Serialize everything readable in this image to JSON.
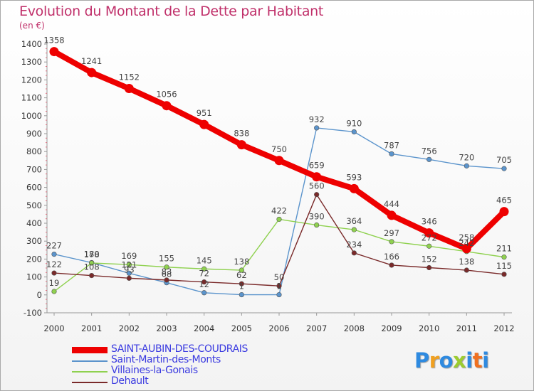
{
  "title": "Evolution du Montant de la Dette par Habitant",
  "unit_label": "(en €)",
  "logo": {
    "text": "Proxiti",
    "letters": [
      {
        "ch": "P",
        "color": "#2e8ae0"
      },
      {
        "ch": "r",
        "color": "#f0a020"
      },
      {
        "ch": "o",
        "color": "#2e8ae0"
      },
      {
        "ch": "x",
        "color": "#9ccc30"
      },
      {
        "ch": "i",
        "color": "#2e8ae0"
      },
      {
        "ch": "t",
        "color": "#f07020"
      },
      {
        "ch": "i",
        "color": "#2e8ae0"
      }
    ]
  },
  "chart_data": {
    "type": "line",
    "title": "Evolution du Montant de la Dette par Habitant",
    "ylabel": "(en €)",
    "xlabel": "",
    "x": [
      "2000",
      "2001",
      "2002",
      "2003",
      "2004",
      "2005",
      "2006",
      "2007",
      "2008",
      "2009",
      "2010",
      "2011",
      "2012"
    ],
    "ylim": [
      -100,
      1400
    ],
    "yticks": [
      -100,
      0,
      100,
      200,
      300,
      400,
      500,
      600,
      700,
      800,
      900,
      1000,
      1100,
      1200,
      1300,
      1400
    ],
    "grid": false,
    "legend": "bottom-left",
    "series": [
      {
        "name": "SAINT-AUBIN-DES-COUDRAIS",
        "color": "#ee0000",
        "emphasis": true,
        "values": [
          1358,
          1241,
          1152,
          1056,
          951,
          838,
          750,
          659,
          593,
          444,
          346,
          258,
          465
        ],
        "labels": [
          "1358",
          "1241",
          "1152",
          "1056",
          "951",
          "838",
          "750",
          "659",
          "593",
          "444",
          "346",
          "258",
          "465"
        ]
      },
      {
        "name": "Saint-Martin-des-Monts",
        "color": "#5b94cc",
        "emphasis": false,
        "values": [
          227,
          180,
          121,
          68,
          12,
          1,
          1,
          932,
          910,
          787,
          756,
          720,
          705
        ],
        "labels": [
          "227",
          "180",
          "121",
          "68",
          "12",
          "1",
          "1",
          "932",
          "910",
          "787",
          "756",
          "720",
          "705"
        ]
      },
      {
        "name": "Villaines-la-Gonais",
        "color": "#8fd14f",
        "emphasis": false,
        "values": [
          19,
          178,
          169,
          155,
          145,
          138,
          422,
          390,
          364,
          297,
          272,
          242,
          211
        ],
        "labels": [
          "19",
          "178",
          "169",
          "155",
          "145",
          "138",
          "422",
          "390",
          "364",
          "297",
          "272",
          "242",
          "211"
        ]
      },
      {
        "name": "Dehault",
        "color": "#7a2a2a",
        "emphasis": false,
        "values": [
          122,
          108,
          93,
          83,
          72,
          62,
          50,
          560,
          234,
          166,
          152,
          138,
          115
        ],
        "labels": [
          "122",
          "108",
          "93",
          "83",
          "72",
          "62",
          "50",
          "560",
          "234",
          "166",
          "152",
          "138",
          "115"
        ]
      }
    ]
  }
}
